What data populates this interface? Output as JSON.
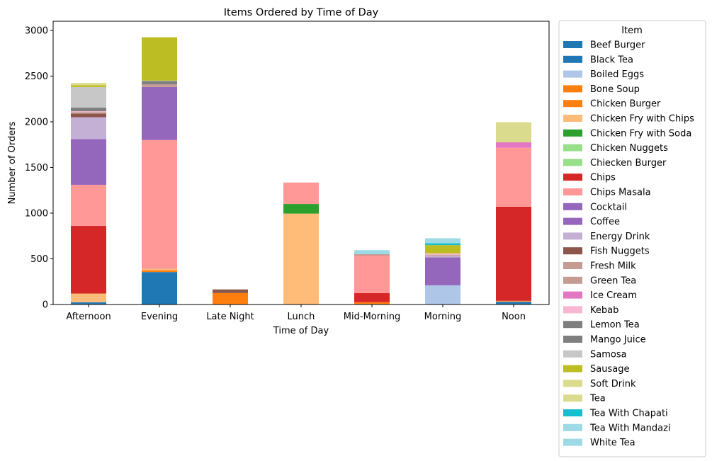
{
  "chart_data": {
    "type": "bar",
    "stacked": true,
    "title": "Items Ordered by Time of Day",
    "xlabel": "Time of Day",
    "ylabel": "Number of Orders",
    "ylim": [
      0,
      3100
    ],
    "yticks": [
      0,
      500,
      1000,
      1500,
      2000,
      2500,
      3000
    ],
    "grid": false,
    "legend_position": "outside-right",
    "legend_title": "Item",
    "categories": [
      "Afternoon",
      "Evening",
      "Late Night",
      "Lunch",
      "Mid-Morning",
      "Morning",
      "Noon"
    ],
    "series": [
      {
        "name": "Beef Burger",
        "color": "#1f77b4",
        "values": [
          5,
          0,
          0,
          0,
          0,
          0,
          5
        ]
      },
      {
        "name": "Black Tea",
        "color": "#1f77b4",
        "values": [
          20,
          355,
          0,
          0,
          5,
          5,
          25
        ]
      },
      {
        "name": "Boiled Eggs",
        "color": "#aec7e8",
        "values": [
          0,
          0,
          0,
          0,
          0,
          205,
          0
        ]
      },
      {
        "name": "Bone Soup",
        "color": "#ff7f0e",
        "values": [
          0,
          0,
          125,
          0,
          0,
          0,
          0
        ]
      },
      {
        "name": "Chicken Burger",
        "color": "#ff7f0e",
        "values": [
          0,
          20,
          0,
          0,
          20,
          0,
          5
        ]
      },
      {
        "name": "Chicken Fry with Chips",
        "color": "#ffbb78",
        "values": [
          95,
          15,
          0,
          995,
          0,
          0,
          5
        ]
      },
      {
        "name": "Chicken Fry with Soda",
        "color": "#2ca02c",
        "values": [
          0,
          0,
          0,
          105,
          0,
          0,
          0
        ]
      },
      {
        "name": "Chicken Nuggets",
        "color": "#98df8a",
        "values": [
          0,
          0,
          0,
          0,
          0,
          0,
          0
        ]
      },
      {
        "name": "Chiecken Burger",
        "color": "#98df8a",
        "values": [
          0,
          0,
          0,
          0,
          0,
          0,
          0
        ]
      },
      {
        "name": "Chips",
        "color": "#d62728",
        "values": [
          740,
          0,
          0,
          0,
          100,
          0,
          1030
        ]
      },
      {
        "name": "Chips Masala",
        "color": "#ff9896",
        "values": [
          450,
          1410,
          0,
          235,
          415,
          0,
          645
        ]
      },
      {
        "name": "Cocktail",
        "color": "#9467bd",
        "values": [
          0,
          0,
          0,
          0,
          0,
          0,
          0
        ]
      },
      {
        "name": "Coffee",
        "color": "#9467bd",
        "values": [
          500,
          580,
          0,
          0,
          0,
          305,
          0
        ]
      },
      {
        "name": "Energy Drink",
        "color": "#c5b0d5",
        "values": [
          240,
          0,
          0,
          0,
          0,
          15,
          0
        ]
      },
      {
        "name": "Fish Nuggets",
        "color": "#8c564b",
        "values": [
          40,
          0,
          40,
          0,
          5,
          0,
          0
        ]
      },
      {
        "name": "Fresh Milk",
        "color": "#c49c94",
        "values": [
          0,
          0,
          0,
          0,
          0,
          10,
          0
        ]
      },
      {
        "name": "Green Tea",
        "color": "#c49c94",
        "values": [
          15,
          30,
          0,
          0,
          5,
          5,
          0
        ]
      },
      {
        "name": "Ice Cream",
        "color": "#e377c2",
        "values": [
          0,
          0,
          0,
          0,
          0,
          0,
          60
        ]
      },
      {
        "name": "Kebab",
        "color": "#f7b6d2",
        "values": [
          10,
          0,
          0,
          0,
          0,
          15,
          0
        ]
      },
      {
        "name": "Lemon Tea",
        "color": "#7f7f7f",
        "values": [
          0,
          0,
          0,
          0,
          0,
          0,
          0
        ]
      },
      {
        "name": "Mango Juice",
        "color": "#7f7f7f",
        "values": [
          40,
          35,
          0,
          0,
          0,
          0,
          0
        ]
      },
      {
        "name": "Samosa",
        "color": "#c7c7c7",
        "values": [
          225,
          5,
          0,
          0,
          0,
          0,
          0
        ]
      },
      {
        "name": "Sausage",
        "color": "#bcbd22",
        "values": [
          20,
          475,
          0,
          0,
          0,
          90,
          0
        ]
      },
      {
        "name": "Soft Drink",
        "color": "#dbdb8d",
        "values": [
          25,
          0,
          0,
          0,
          0,
          0,
          0
        ]
      },
      {
        "name": "Tea",
        "color": "#dbdb8d",
        "values": [
          0,
          0,
          0,
          0,
          0,
          0,
          220
        ]
      },
      {
        "name": "Tea With Chapati",
        "color": "#17becf",
        "values": [
          0,
          0,
          0,
          0,
          0,
          20,
          0
        ]
      },
      {
        "name": "Tea With Mandazi",
        "color": "#9edae5",
        "values": [
          0,
          0,
          0,
          0,
          0,
          55,
          0
        ]
      },
      {
        "name": "White Tea",
        "color": "#9edae5",
        "values": [
          0,
          0,
          0,
          0,
          45,
          0,
          0
        ]
      }
    ]
  }
}
